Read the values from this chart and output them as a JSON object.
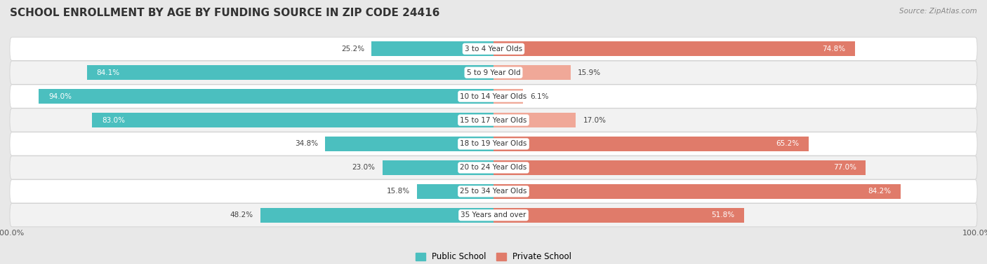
{
  "title": "SCHOOL ENROLLMENT BY AGE BY FUNDING SOURCE IN ZIP CODE 24416",
  "source": "Source: ZipAtlas.com",
  "categories": [
    "3 to 4 Year Olds",
    "5 to 9 Year Old",
    "10 to 14 Year Olds",
    "15 to 17 Year Olds",
    "18 to 19 Year Olds",
    "20 to 24 Year Olds",
    "25 to 34 Year Olds",
    "35 Years and over"
  ],
  "public_pct": [
    25.2,
    84.1,
    94.0,
    83.0,
    34.8,
    23.0,
    15.8,
    48.2
  ],
  "private_pct": [
    74.8,
    15.9,
    6.1,
    17.0,
    65.2,
    77.0,
    84.2,
    51.8
  ],
  "public_color": "#4BBFBF",
  "private_color": "#E07B6A",
  "private_color_light": "#F0A898",
  "public_label": "Public School",
  "private_label": "Private School",
  "bg_color": "#e8e8e8",
  "row_bg_even": "#ffffff",
  "row_bg_odd": "#f2f2f2",
  "title_fontsize": 11,
  "label_fontsize": 8.0,
  "bar_height": 0.62,
  "x_axis_label": "100.0%"
}
